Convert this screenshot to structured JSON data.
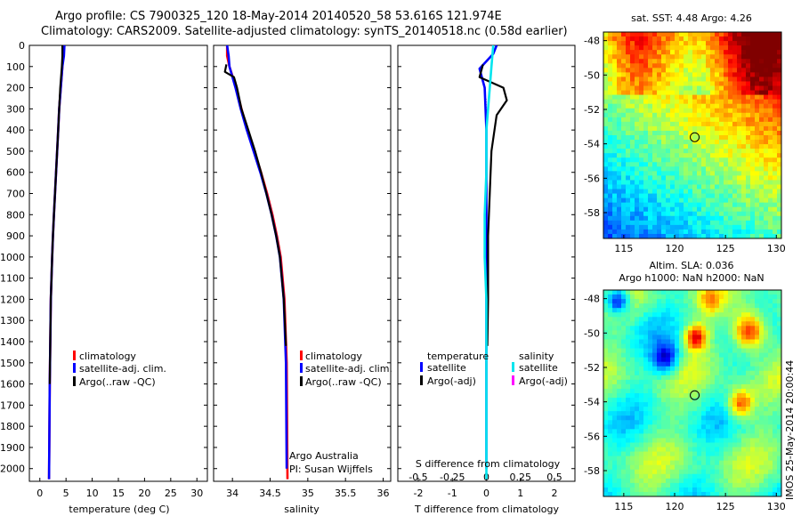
{
  "header": {
    "line1": "Argo profile: CS 7900325_120 18-May-2014 20140520_58 53.616S 121.974E",
    "line2": "Climatology: CARS2009. Satellite-adjusted climatology: synTS_20140518.nc (0.58d earlier)"
  },
  "legend_labels": {
    "climatology": "climatology",
    "satellite_adj": "satellite-adj. clim.",
    "argo_raw": "Argo(..raw -QC)",
    "temperature_head": "temperature",
    "salinity_head": "salinity",
    "satellite": "satellite",
    "argo_adj": "Argo(-adj)"
  },
  "credits": {
    "org": "Argo Australia",
    "pi": "PI: Susan Wijffels"
  },
  "map_titles": {
    "sst": "sat. SST: 4.48 Argo: 4.26",
    "sla1": "Altim. SLA: 0.036",
    "sla2": "Argo h1000: NaN h2000: NaN"
  },
  "side_stamp": "IMOS 25-May-2014 20:00:44",
  "colors": {
    "climatology": "#ff0000",
    "satellite": "#0000ff",
    "argo": "#000000",
    "sal_satellite": "#00e5ee",
    "sal_argo": "#ff00ff"
  },
  "chart_data": [
    {
      "type": "line",
      "xlabel": "temperature (deg C)",
      "ylabel": "",
      "xlim": [
        -2,
        32
      ],
      "ylim": [
        2060,
        0
      ],
      "x_ticks": [
        0,
        5,
        10,
        15,
        20,
        25,
        30
      ],
      "y_ticks": [
        0,
        100,
        200,
        300,
        400,
        500,
        600,
        700,
        800,
        900,
        1000,
        1100,
        1200,
        1300,
        1400,
        1500,
        1600,
        1700,
        1800,
        1900,
        2000
      ],
      "series": [
        {
          "name": "climatology",
          "color": "#ff0000",
          "x": [
            4.4,
            4.4,
            4.3,
            4.0,
            3.7,
            3.5,
            3.3,
            3.1,
            2.9,
            2.7,
            2.5,
            2.35,
            2.1,
            1.9,
            1.75
          ],
          "y": [
            0,
            50,
            100,
            200,
            300,
            400,
            500,
            600,
            700,
            800,
            900,
            1000,
            1200,
            1600,
            2050
          ]
        },
        {
          "name": "satellite-adj. clim.",
          "color": "#0000ff",
          "x": [
            4.7,
            4.6,
            4.3,
            4.0,
            3.7,
            3.5,
            3.3,
            3.1,
            2.9,
            2.7,
            2.5,
            2.35,
            2.1,
            1.9,
            1.75
          ],
          "y": [
            0,
            50,
            100,
            200,
            300,
            400,
            500,
            600,
            700,
            800,
            900,
            1000,
            1200,
            1600,
            2050
          ]
        },
        {
          "name": "Argo(..raw -QC)",
          "color": "#000000",
          "x": [
            4.3,
            4.3,
            4.2,
            3.9,
            3.7,
            3.5,
            3.3,
            3.1,
            2.9,
            2.7,
            2.5,
            2.35,
            2.1,
            1.9
          ],
          "y": [
            0,
            50,
            100,
            200,
            300,
            400,
            500,
            600,
            700,
            800,
            900,
            1000,
            1200,
            1600
          ]
        }
      ]
    },
    {
      "type": "line",
      "xlabel": "salinity",
      "ylabel": "",
      "xlim": [
        33.75,
        36.1
      ],
      "ylim": [
        2060,
        0
      ],
      "x_ticks": [
        34,
        34.5,
        35,
        35.5,
        36
      ],
      "series": [
        {
          "name": "climatology",
          "color": "#ff0000",
          "x": [
            33.93,
            33.93,
            33.96,
            34.05,
            34.12,
            34.2,
            34.29,
            34.38,
            34.46,
            34.53,
            34.59,
            34.64,
            34.69,
            34.72,
            34.73
          ],
          "y": [
            0,
            50,
            100,
            200,
            300,
            400,
            500,
            600,
            700,
            800,
            900,
            1000,
            1200,
            1500,
            2050
          ]
        },
        {
          "name": "satellite-adj. clim.",
          "color": "#0000ff",
          "x": [
            33.93,
            33.95,
            33.96,
            34.04,
            34.11,
            34.19,
            34.28,
            34.37,
            34.45,
            34.52,
            34.58,
            34.63,
            34.68,
            34.71,
            34.72
          ],
          "y": [
            0,
            50,
            100,
            200,
            300,
            400,
            500,
            600,
            700,
            800,
            900,
            1000,
            1200,
            1500,
            2000
          ]
        },
        {
          "name": "Argo(..raw -QC)",
          "color": "#000000",
          "x": [
            33.92,
            33.9,
            34.02,
            34.06,
            34.12,
            34.21,
            34.3,
            34.38,
            34.45,
            34.52,
            34.58,
            34.63,
            34.68,
            34.71
          ],
          "y": [
            90,
            125,
            150,
            200,
            300,
            400,
            500,
            600,
            700,
            800,
            900,
            1000,
            1200,
            1420
          ]
        }
      ]
    },
    {
      "type": "line",
      "xlabel": "T difference from climatology",
      "xlabel_top": "S difference from climatology",
      "xlim": [
        -2.6,
        2.6
      ],
      "ylim": [
        2060,
        0
      ],
      "x_ticks": [
        -2,
        -1,
        0,
        1,
        2
      ],
      "x_ticks_top": [
        -0.5,
        -0.25,
        0,
        0.25,
        0.5
      ],
      "series": [
        {
          "name": "temperature satellite",
          "color": "#0000ff",
          "x": [
            0.3,
            0.2,
            -0.2,
            -0.05,
            0.0,
            0.0,
            0.0,
            0.0
          ],
          "y": [
            0,
            40,
            110,
            200,
            400,
            800,
            1300,
            2000
          ]
        },
        {
          "name": "temperature Argo(-adj)",
          "color": "#000000",
          "x": [
            -0.1,
            -0.2,
            0.5,
            0.6,
            0.3,
            0.15,
            0.1,
            0.05,
            0.05,
            0.03
          ],
          "y": [
            90,
            150,
            200,
            260,
            330,
            500,
            700,
            900,
            1200,
            1420
          ]
        },
        {
          "name": "salinity satellite",
          "color": "#00e5ee",
          "x": [
            0.2,
            0.15,
            0.1,
            0.0,
            0.0,
            -0.05,
            -0.05,
            0.0,
            0.0,
            0.0
          ],
          "y": [
            0,
            100,
            200,
            400,
            600,
            800,
            1000,
            1200,
            1600,
            2050
          ]
        }
      ]
    },
    {
      "type": "heatmap",
      "title": "sat. SST: 4.48 Argo: 4.26",
      "xlim": [
        113,
        130.5
      ],
      "ylim": [
        -59.5,
        -47.5
      ],
      "x_ticks": [
        115,
        120,
        125,
        130
      ],
      "y_ticks": [
        -48,
        -50,
        -52,
        -54,
        -56,
        -58
      ],
      "marker": {
        "lon": 121.974,
        "lat": -53.616
      }
    },
    {
      "type": "heatmap",
      "title": "Argo h1000: NaN h2000: NaN",
      "xlim": [
        113,
        130.5
      ],
      "ylim": [
        -59.5,
        -47.5
      ],
      "x_ticks": [
        115,
        120,
        125,
        130
      ],
      "y_ticks": [
        -48,
        -50,
        -52,
        -54,
        -56,
        -58
      ],
      "marker": {
        "lon": 121.974,
        "lat": -53.616
      }
    }
  ]
}
